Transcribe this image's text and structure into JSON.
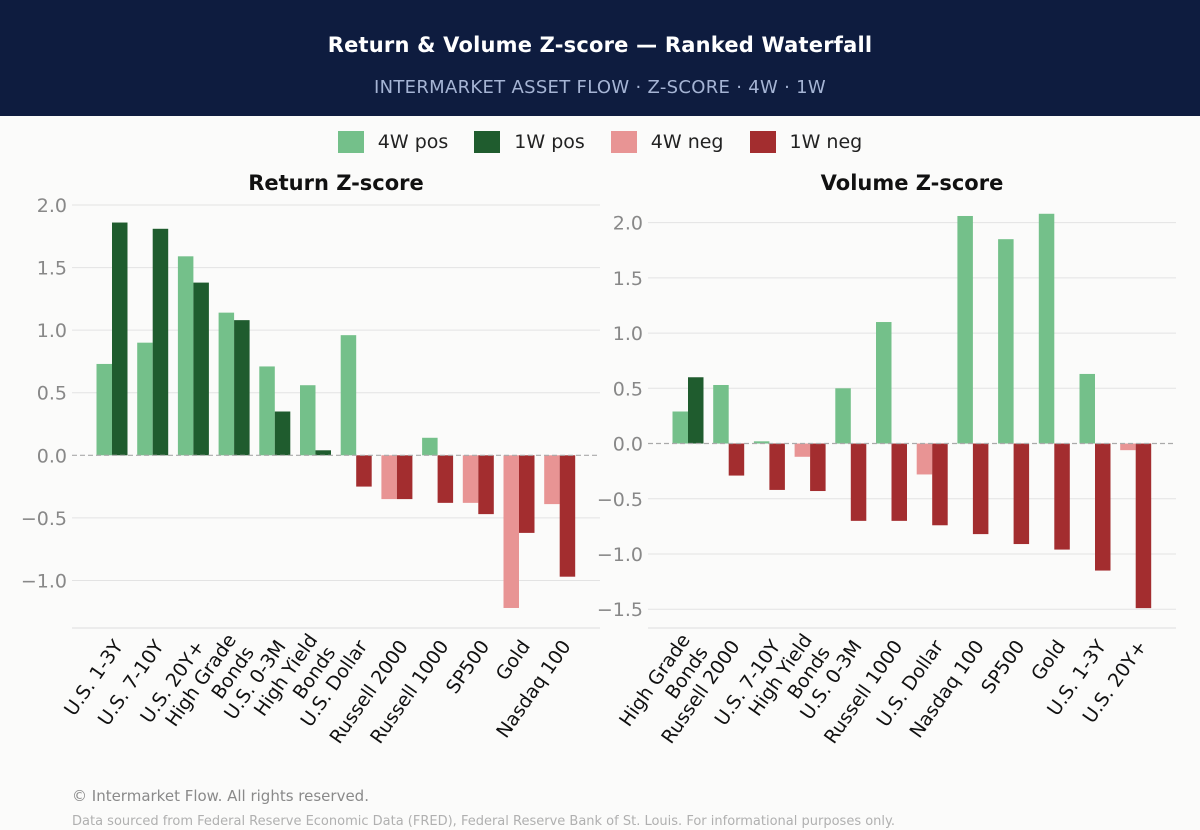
{
  "header": {
    "title": "Return & Volume Z-score — Ranked Waterfall",
    "subtitle": "INTERMARKET ASSET FLOW  ·  Z-SCORE  ·  4W · 1W"
  },
  "legend": [
    {
      "label": "4W pos",
      "color": "#74c08a"
    },
    {
      "label": "1W pos",
      "color": "#1f5c2e"
    },
    {
      "label": "4W neg",
      "color": "#e89494"
    },
    {
      "label": "1W neg",
      "color": "#a32d2f"
    }
  ],
  "colors": {
    "pos4w": "#74c08a",
    "pos1w": "#1f5c2e",
    "neg4w": "#e89494",
    "neg1w": "#a32d2f"
  },
  "chart_data": [
    {
      "type": "bar",
      "title": "Return Z-score",
      "categories": [
        "U.S. 1-3Y",
        "U.S. 7-10Y",
        "U.S. 20Y+",
        "High Grade\nBonds",
        "U.S. 0-3M",
        "High Yield\nBonds",
        "U.S. Dollar",
        "Russell 2000",
        "Russell 1000",
        "SP500",
        "Gold",
        "Nasdaq 100"
      ],
      "series": [
        {
          "name": "4W",
          "values": [
            0.73,
            0.9,
            1.59,
            1.14,
            0.71,
            0.56,
            0.96,
            -0.35,
            0.14,
            -0.38,
            -1.22,
            -0.39
          ]
        },
        {
          "name": "1W",
          "values": [
            1.86,
            1.81,
            1.38,
            1.08,
            0.35,
            0.04,
            -0.25,
            -0.35,
            -0.38,
            -0.47,
            -0.62,
            -0.97
          ]
        }
      ],
      "ylim": [
        -1.38,
        2.08
      ],
      "yticks": [
        -1.0,
        -0.5,
        0.0,
        0.5,
        1.0,
        1.5,
        2.0
      ],
      "ytick_labels": [
        "−1.0",
        "−0.5",
        "0.0",
        "0.5",
        "1.0",
        "1.5",
        "2.0"
      ],
      "grid": true,
      "xlabel": "",
      "ylabel": ""
    },
    {
      "type": "bar",
      "title": "Volume Z-score",
      "categories": [
        "High Grade\nBonds",
        "Russell 2000",
        "U.S. 7-10Y",
        "High Yield\nBonds",
        "U.S. 0-3M",
        "Russell 1000",
        "U.S. Dollar",
        "Nasdaq 100",
        "SP500",
        "Gold",
        "U.S. 1-3Y",
        "U.S. 20Y+"
      ],
      "series": [
        {
          "name": "4W",
          "values": [
            0.29,
            0.53,
            0.02,
            -0.12,
            0.5,
            1.1,
            -0.28,
            2.06,
            1.85,
            2.08,
            0.63,
            -0.06
          ]
        },
        {
          "name": "1W",
          "values": [
            0.6,
            -0.29,
            -0.42,
            -0.43,
            -0.7,
            -0.7,
            -0.74,
            -0.82,
            -0.91,
            -0.96,
            -1.15,
            -1.49
          ]
        }
      ],
      "ylim": [
        -1.67,
        2.25
      ],
      "yticks": [
        -1.5,
        -1.0,
        -0.5,
        0.0,
        0.5,
        1.0,
        1.5,
        2.0
      ],
      "ytick_labels": [
        "−1.5",
        "−1.0",
        "−0.5",
        "0.0",
        "0.5",
        "1.0",
        "1.5",
        "2.0"
      ],
      "grid": true,
      "xlabel": "",
      "ylabel": ""
    }
  ],
  "footer": {
    "copyright": "© Intermarket Flow. All rights reserved.",
    "source": "Data sourced from Federal Reserve Economic Data (FRED), Federal Reserve Bank of St. Louis. For informational purposes only."
  }
}
